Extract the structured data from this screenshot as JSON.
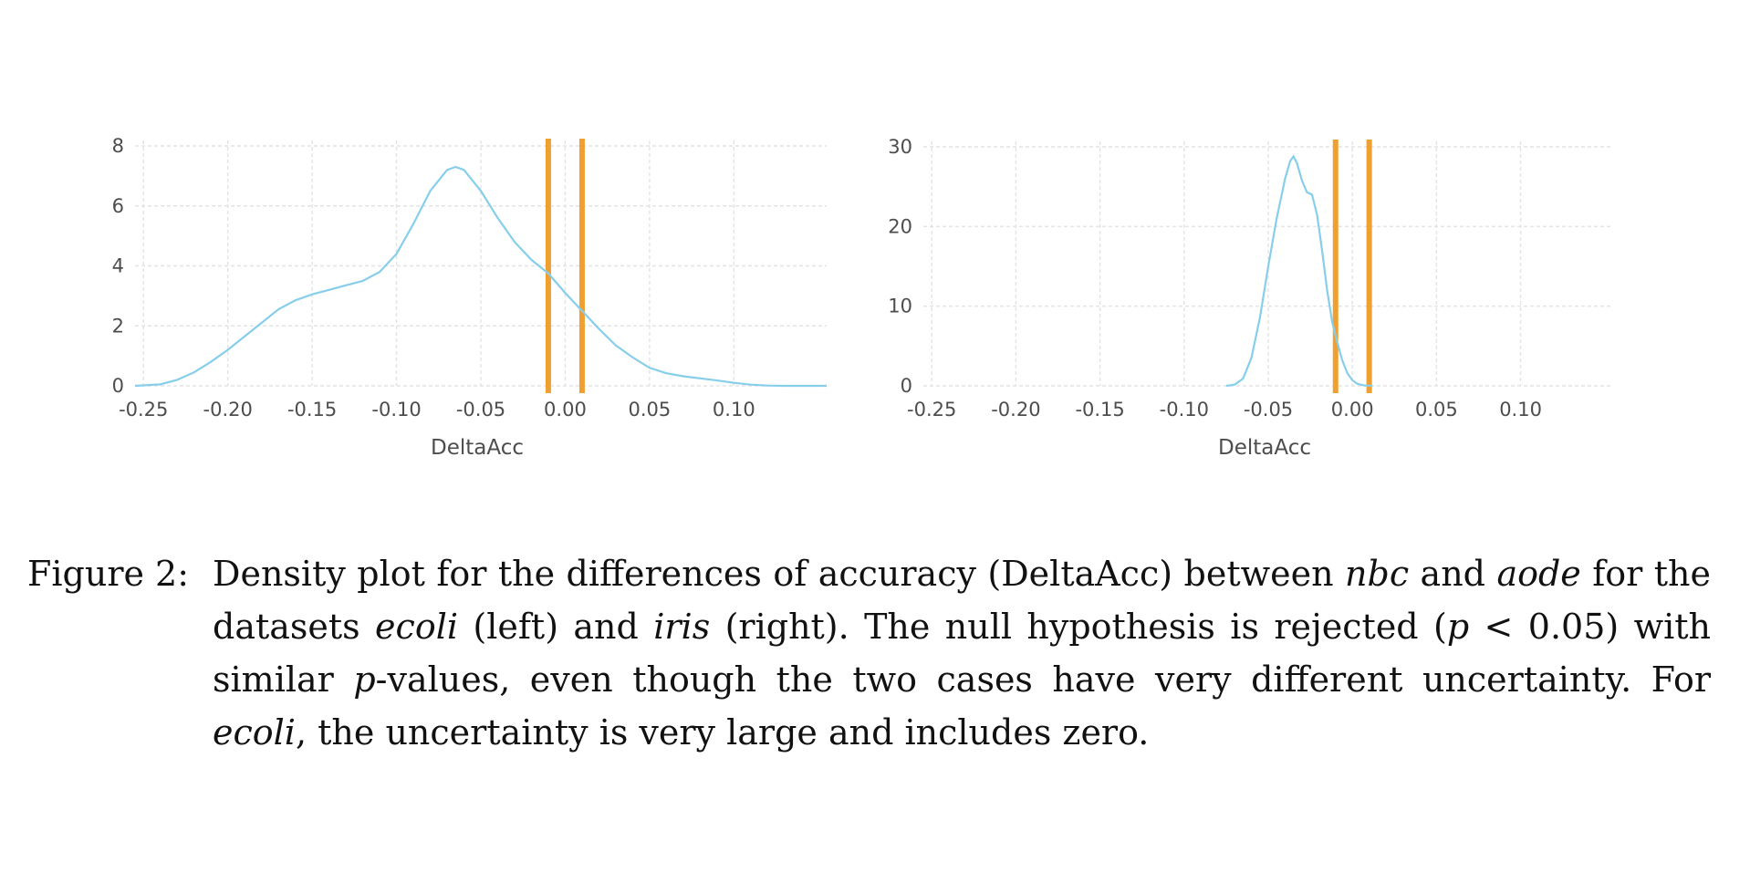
{
  "chart_data": [
    {
      "type": "line",
      "dataset": "ecoli",
      "title": "",
      "xlabel": "DeltaAcc",
      "ylabel": "",
      "xlim": [
        -0.255,
        0.155
      ],
      "ylim": [
        0,
        8
      ],
      "xticks": [
        "-0.25",
        "-0.20",
        "-0.15",
        "-0.10",
        "-0.05",
        "0.00",
        "0.05",
        "0.10"
      ],
      "xtick_values": [
        -0.25,
        -0.2,
        -0.15,
        -0.1,
        -0.05,
        0.0,
        0.05,
        0.1
      ],
      "yticks": [
        "0",
        "2",
        "4",
        "6",
        "8"
      ],
      "ytick_values": [
        0,
        2,
        4,
        6,
        8
      ],
      "grid": true,
      "series": [
        {
          "color": "#87ceeb",
          "x": [
            -0.255,
            -0.24,
            -0.23,
            -0.22,
            -0.21,
            -0.2,
            -0.19,
            -0.18,
            -0.17,
            -0.16,
            -0.15,
            -0.14,
            -0.13,
            -0.12,
            -0.11,
            -0.1,
            -0.09,
            -0.08,
            -0.07,
            -0.065,
            -0.06,
            -0.05,
            -0.04,
            -0.03,
            -0.02,
            -0.01,
            0.0,
            0.01,
            0.02,
            0.03,
            0.04,
            0.05,
            0.06,
            0.07,
            0.08,
            0.09,
            0.1,
            0.11,
            0.12,
            0.13,
            0.155
          ],
          "y": [
            0.0,
            0.05,
            0.2,
            0.45,
            0.8,
            1.2,
            1.65,
            2.1,
            2.55,
            2.85,
            3.05,
            3.2,
            3.35,
            3.5,
            3.8,
            4.4,
            5.4,
            6.5,
            7.2,
            7.3,
            7.2,
            6.5,
            5.6,
            4.8,
            4.2,
            3.75,
            3.1,
            2.5,
            1.9,
            1.35,
            0.95,
            0.6,
            0.42,
            0.32,
            0.25,
            0.18,
            0.1,
            0.04,
            0.01,
            0.0,
            0.0
          ]
        }
      ],
      "reference_lines": {
        "color": "#f0a030",
        "x": [
          -0.01,
          0.01
        ]
      }
    },
    {
      "type": "line",
      "dataset": "iris",
      "title": "",
      "xlabel": "DeltaAcc",
      "ylabel": "",
      "xlim": [
        -0.255,
        0.155
      ],
      "ylim": [
        0,
        30
      ],
      "xticks": [
        "-0.25",
        "-0.20",
        "-0.15",
        "-0.10",
        "-0.05",
        "0.00",
        "0.05",
        "0.10"
      ],
      "xtick_values": [
        -0.25,
        -0.2,
        -0.15,
        -0.1,
        -0.05,
        0.0,
        0.05,
        0.1
      ],
      "yticks": [
        "0",
        "10",
        "20",
        "30"
      ],
      "ytick_values": [
        0,
        10,
        20,
        30
      ],
      "grid": true,
      "series": [
        {
          "color": "#87ceeb",
          "x": [
            -0.075,
            -0.07,
            -0.065,
            -0.06,
            -0.055,
            -0.05,
            -0.045,
            -0.04,
            -0.037,
            -0.035,
            -0.033,
            -0.03,
            -0.027,
            -0.024,
            -0.021,
            -0.018,
            -0.015,
            -0.012,
            -0.009,
            -0.006,
            -0.003,
            0.0,
            0.003,
            0.007,
            0.012
          ],
          "y": [
            0.0,
            0.15,
            0.9,
            3.5,
            8.5,
            15.0,
            21.0,
            26.0,
            28.2,
            28.8,
            28.0,
            25.8,
            24.3,
            24.0,
            21.5,
            17.0,
            12.0,
            8.0,
            5.5,
            3.2,
            1.6,
            0.7,
            0.25,
            0.05,
            0.0
          ]
        }
      ],
      "reference_lines": {
        "color": "#f0a030",
        "x": [
          -0.01,
          0.01
        ]
      }
    }
  ],
  "caption": {
    "label": "Figure 2:",
    "parts": [
      {
        "text": "Density plot for the differences of accuracy (DeltaAcc) between ",
        "italic": false
      },
      {
        "text": "nbc",
        "italic": true
      },
      {
        "text": " and ",
        "italic": false
      },
      {
        "text": "aode",
        "italic": true
      },
      {
        "text": " for the datasets ",
        "italic": false
      },
      {
        "text": "ecoli",
        "italic": true
      },
      {
        "text": " (left) and ",
        "italic": false
      },
      {
        "text": "iris",
        "italic": true
      },
      {
        "text": " (right). The null hypothesis is rejected (",
        "italic": false
      },
      {
        "text": "p",
        "italic": true
      },
      {
        "text": " < 0.05) with similar ",
        "italic": false
      },
      {
        "text": "p",
        "italic": true
      },
      {
        "text": "-values, even though the two cases have very different uncertainty. For ",
        "italic": false
      },
      {
        "text": "ecoli",
        "italic": true
      },
      {
        "text": ", the uncertainty is very large and includes zero.",
        "italic": false
      }
    ]
  }
}
